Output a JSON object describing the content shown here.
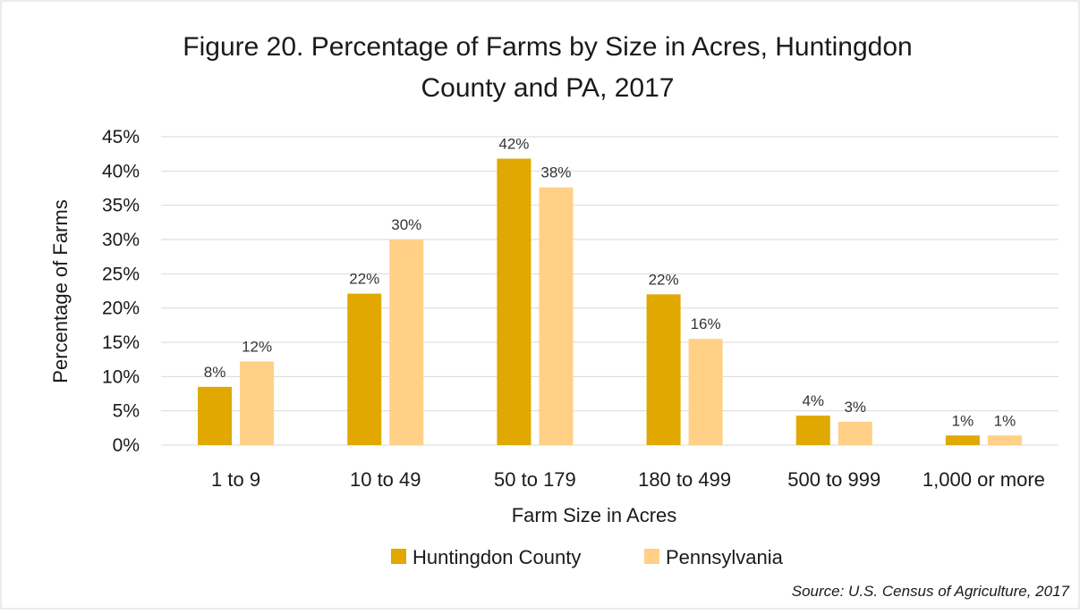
{
  "chart_data": {
    "type": "bar",
    "title_lines": [
      "Figure 20. Percentage of Farms by Size in Acres, Huntingdon",
      "County and PA, 2017"
    ],
    "xlabel": "Farm Size in Acres",
    "ylabel": "Percentage of Farms",
    "categories": [
      "1 to 9",
      "10 to 49",
      "50 to 179",
      "180 to 499",
      "500 to 999",
      "1,000 or more"
    ],
    "series": [
      {
        "name": "Huntingdon County",
        "color": "#E0A800",
        "values": [
          8.5,
          22.1,
          41.8,
          22.0,
          4.3,
          1.4
        ],
        "labels": [
          "8%",
          "22%",
          "42%",
          "22%",
          "4%",
          "1%"
        ]
      },
      {
        "name": "Pennsylvania",
        "color": "#FFD085",
        "values": [
          12.2,
          30.0,
          37.6,
          15.5,
          3.4,
          1.4
        ],
        "labels": [
          "12%",
          "30%",
          "38%",
          "16%",
          "3%",
          "1%"
        ]
      }
    ],
    "ylim": [
      0,
      45
    ],
    "yticks": [
      0,
      5,
      10,
      15,
      20,
      25,
      30,
      35,
      40,
      45
    ],
    "ytick_labels": [
      "0%",
      "5%",
      "10%",
      "15%",
      "20%",
      "25%",
      "30%",
      "35%",
      "40%",
      "45%"
    ],
    "grid": true,
    "legend_position": "bottom",
    "source": "Source: U.S. Census of Agriculture, 2017"
  }
}
